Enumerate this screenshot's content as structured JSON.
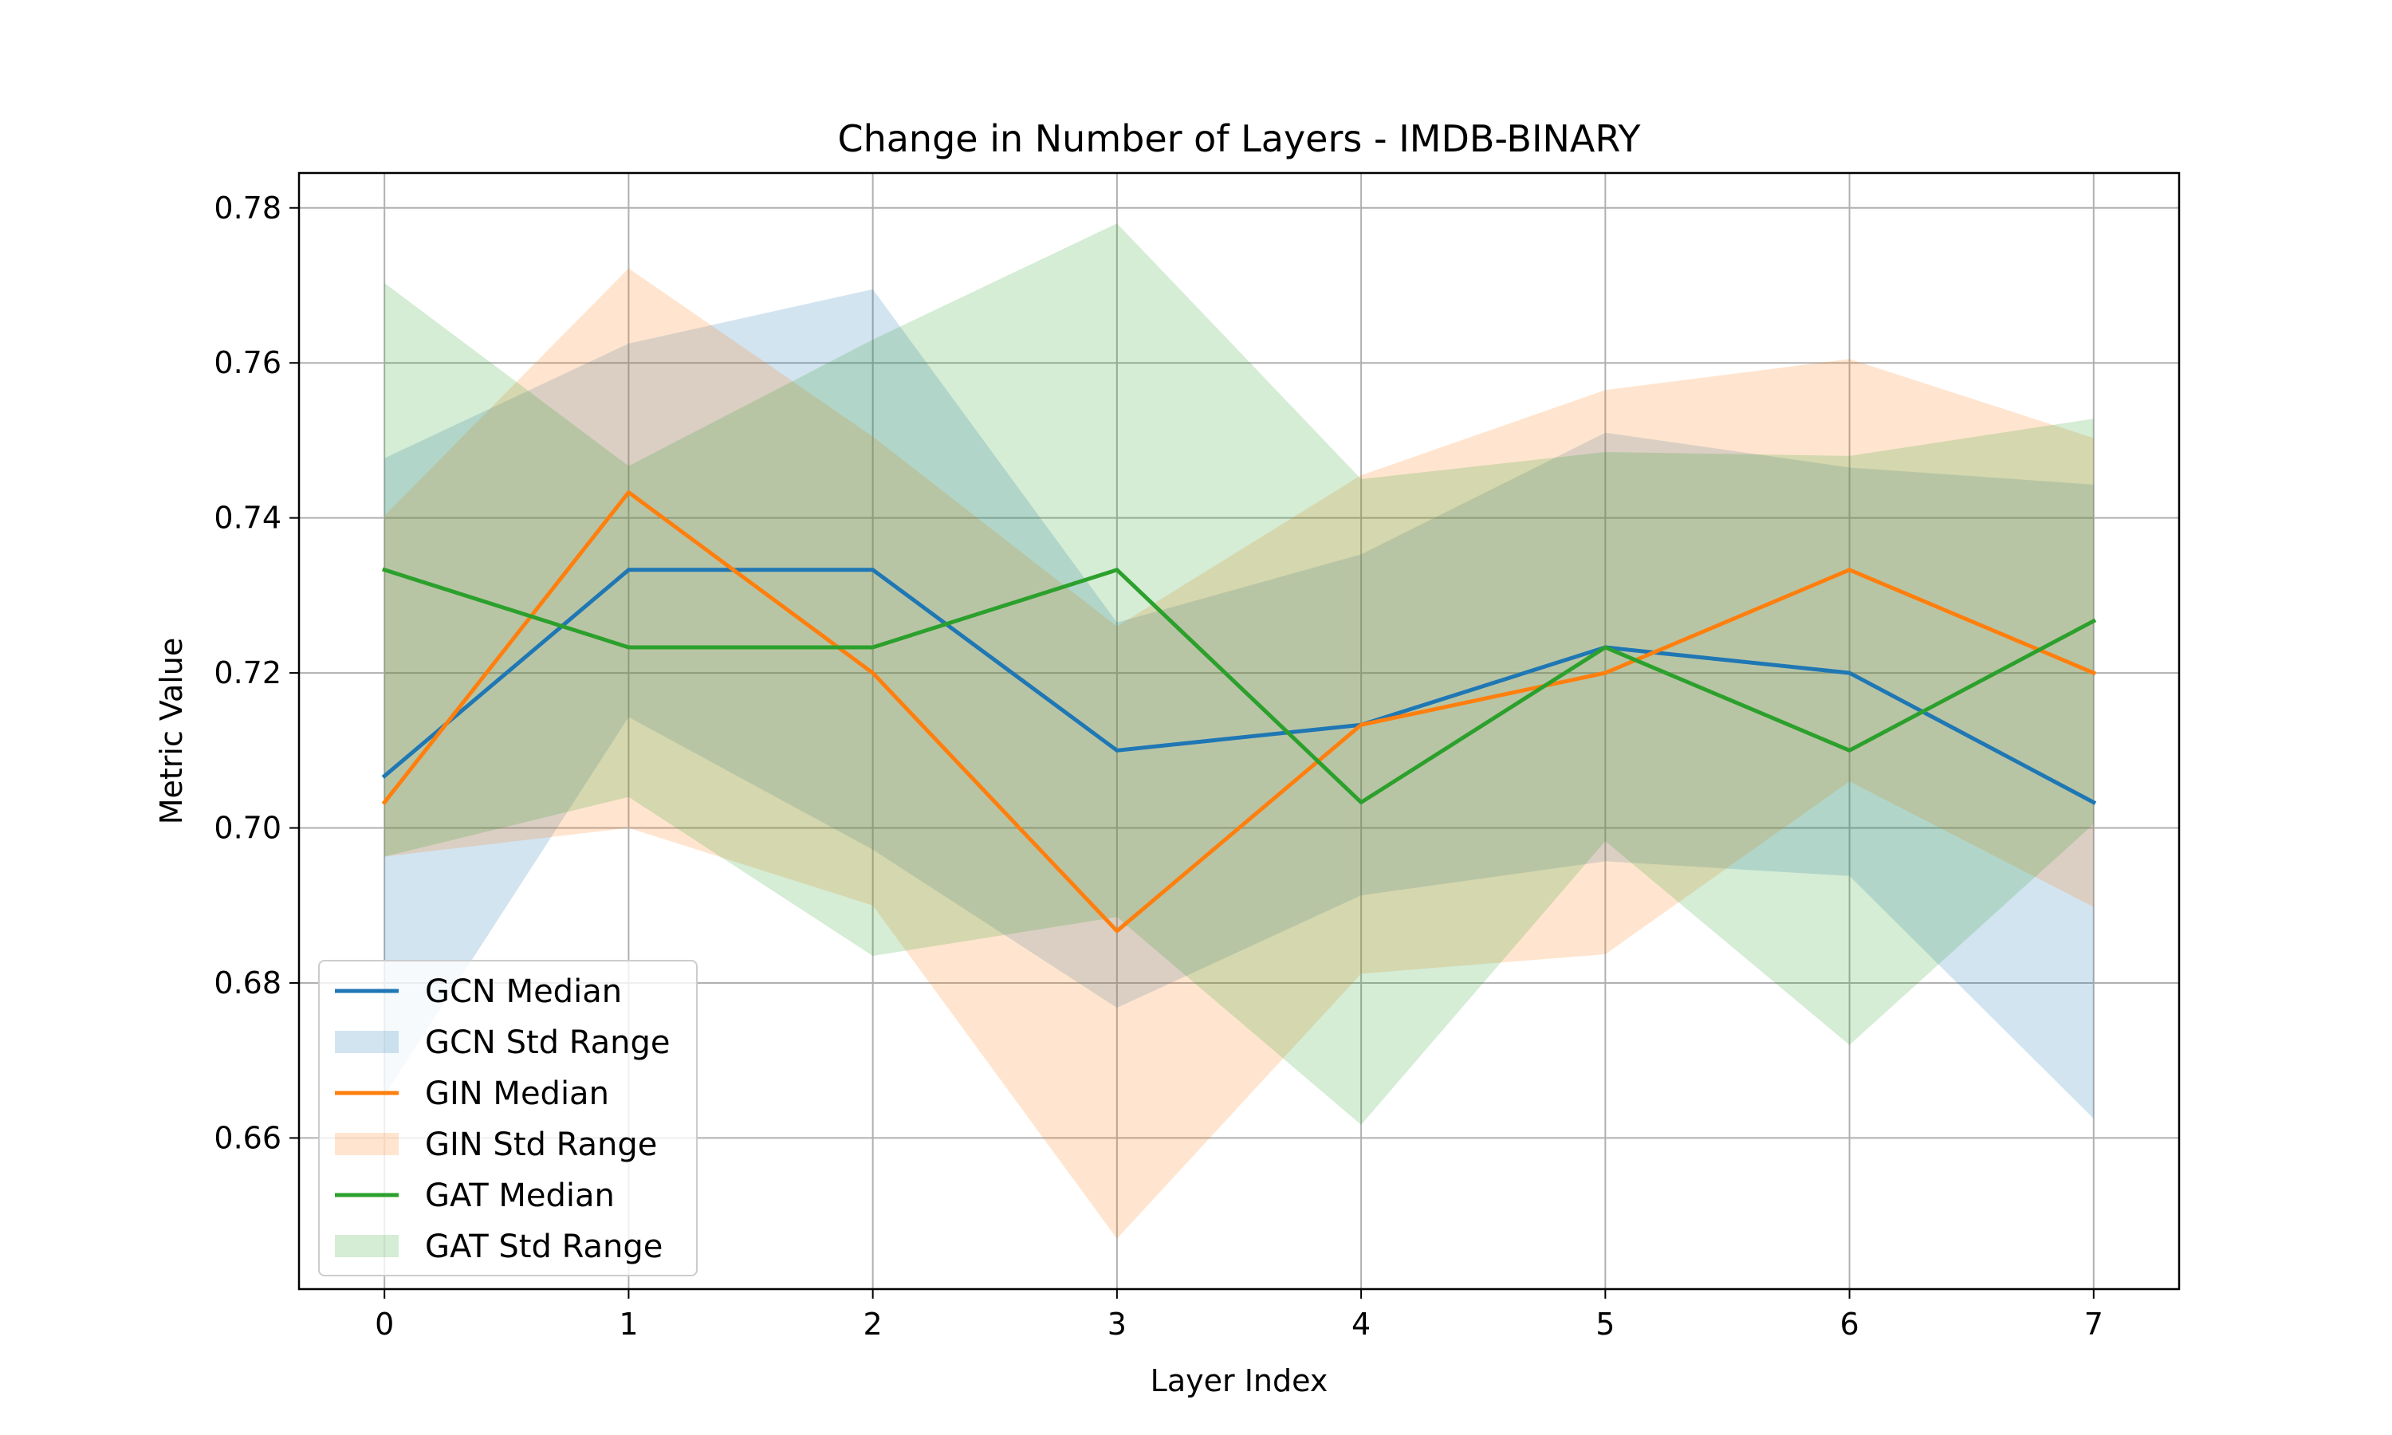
{
  "chart_data": {
    "type": "line",
    "title": "Change in Number of Layers - IMDB-BINARY",
    "xlabel": "Layer Index",
    "ylabel": "Metric Value",
    "x": [
      0,
      1,
      2,
      3,
      4,
      5,
      6,
      7
    ],
    "xticks": [
      "0",
      "1",
      "2",
      "3",
      "4",
      "5",
      "6",
      "7"
    ],
    "yticks": [
      "0.66",
      "0.68",
      "0.70",
      "0.72",
      "0.74",
      "0.76",
      "0.78"
    ],
    "xlim": [
      -0.35,
      7.35
    ],
    "ylim": [
      0.6405,
      0.7845
    ],
    "grid": true,
    "legend_position": "lower-left",
    "series": [
      {
        "name": "GCN Median",
        "band_name": "GCN Std Range",
        "color": "#1f77b4",
        "values": [
          0.7067,
          0.7333,
          0.7333,
          0.71,
          0.7133,
          0.7233,
          0.72,
          0.7033
        ],
        "upper": [
          0.7477,
          0.7625,
          0.7695,
          0.7265,
          0.7353,
          0.751,
          0.7465,
          0.7443
        ],
        "lower": [
          0.6655,
          0.7143,
          0.6972,
          0.6768,
          0.6913,
          0.6957,
          0.6938,
          0.6625
        ]
      },
      {
        "name": "GIN Median",
        "band_name": "GIN Std Range",
        "color": "#ff7f0e",
        "values": [
          0.7033,
          0.7433,
          0.72,
          0.6867,
          0.7133,
          0.72,
          0.7333,
          0.72
        ],
        "upper": [
          0.7403,
          0.7722,
          0.7505,
          0.726,
          0.7455,
          0.7565,
          0.7605,
          0.7503
        ],
        "lower": [
          0.6963,
          0.7,
          0.69,
          0.647,
          0.6812,
          0.6837,
          0.706,
          0.6898
        ]
      },
      {
        "name": "GAT Median",
        "band_name": "GAT Std Range",
        "color": "#2ca02c",
        "values": [
          0.7333,
          0.7233,
          0.7233,
          0.7333,
          0.7033,
          0.7233,
          0.71,
          0.7267
        ],
        "upper": [
          0.7703,
          0.7467,
          0.763,
          0.778,
          0.745,
          0.7485,
          0.748,
          0.7528
        ],
        "lower": [
          0.6963,
          0.704,
          0.6835,
          0.6885,
          0.6617,
          0.6983,
          0.672,
          0.7005
        ]
      }
    ]
  }
}
